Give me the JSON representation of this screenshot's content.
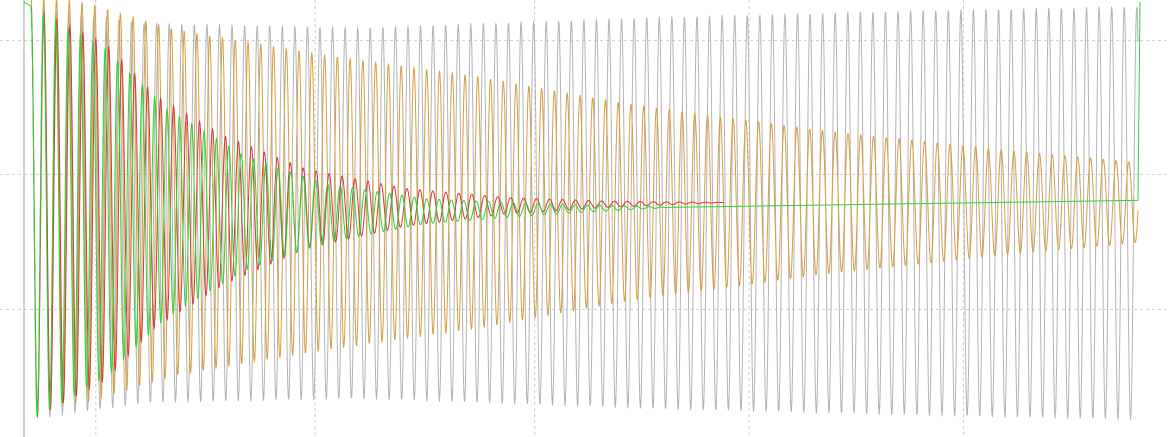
{
  "colors": {
    "background": "#ffffff",
    "grid": "#cfcfcf",
    "axis": "#a8a8a8"
  },
  "chart_data": {
    "type": "line",
    "title": "",
    "xlabel": "",
    "ylabel": "",
    "xlim": [
      0,
      1115
    ],
    "ylim": [
      -1.0,
      1.0
    ],
    "grid": true,
    "grid_style": "dashed",
    "grid_x": [
      70,
      290,
      510,
      725,
      940
    ],
    "grid_y": [
      0.817,
      0.183,
      -0.457
    ],
    "series": [
      {
        "color": "#b3b3b3",
        "period": 12.6,
        "start": 5,
        "end": 1115,
        "amplitude_knots": [
          [
            5,
            0.98
          ],
          [
            120,
            0.9
          ],
          [
            340,
            0.88
          ],
          [
            640,
            0.93
          ],
          [
            900,
            0.96
          ],
          [
            1115,
            0.98
          ]
        ],
        "center_knots": [
          [
            5,
            0.0
          ],
          [
            1115,
            0.0
          ]
        ]
      },
      {
        "color": "#d4a040",
        "period": 12.8,
        "start": 5,
        "end": 1115,
        "amplitude_knots": [
          [
            5,
            0.98
          ],
          [
            60,
            0.95
          ],
          [
            150,
            0.82
          ],
          [
            300,
            0.7
          ],
          [
            450,
            0.6
          ],
          [
            600,
            0.47
          ],
          [
            800,
            0.34
          ],
          [
            1000,
            0.24
          ],
          [
            1115,
            0.19
          ]
        ],
        "center_knots": [
          [
            5,
            0.05
          ],
          [
            600,
            0.05
          ],
          [
            1115,
            0.05
          ]
        ]
      },
      {
        "color": "#d83a3a",
        "period": 13.0,
        "start": 5,
        "end": 700,
        "amplitude_knots": [
          [
            5,
            0.98
          ],
          [
            80,
            0.8
          ],
          [
            130,
            0.55
          ],
          [
            200,
            0.35
          ],
          [
            280,
            0.19
          ],
          [
            380,
            0.09
          ],
          [
            480,
            0.04
          ],
          [
            580,
            0.015
          ],
          [
            700,
            0.0
          ]
        ],
        "center_knots": [
          [
            5,
            0.0
          ],
          [
            700,
            0.05
          ]
        ]
      },
      {
        "color": "#28d43c",
        "period": 12.4,
        "start": 5,
        "end": 1115,
        "amplitude_knots": [
          [
            5,
            0.98
          ],
          [
            80,
            0.78
          ],
          [
            140,
            0.5
          ],
          [
            220,
            0.27
          ],
          [
            300,
            0.14
          ],
          [
            400,
            0.06
          ],
          [
            520,
            0.025
          ],
          [
            650,
            0.0
          ],
          [
            1115,
            0.0
          ]
        ],
        "center_knots": [
          [
            5,
            0.0
          ],
          [
            300,
            0.0
          ],
          [
            550,
            0.02
          ],
          [
            1115,
            0.06
          ]
        ],
        "start_spike": 1.0,
        "end_spike": 1.0
      }
    ]
  }
}
